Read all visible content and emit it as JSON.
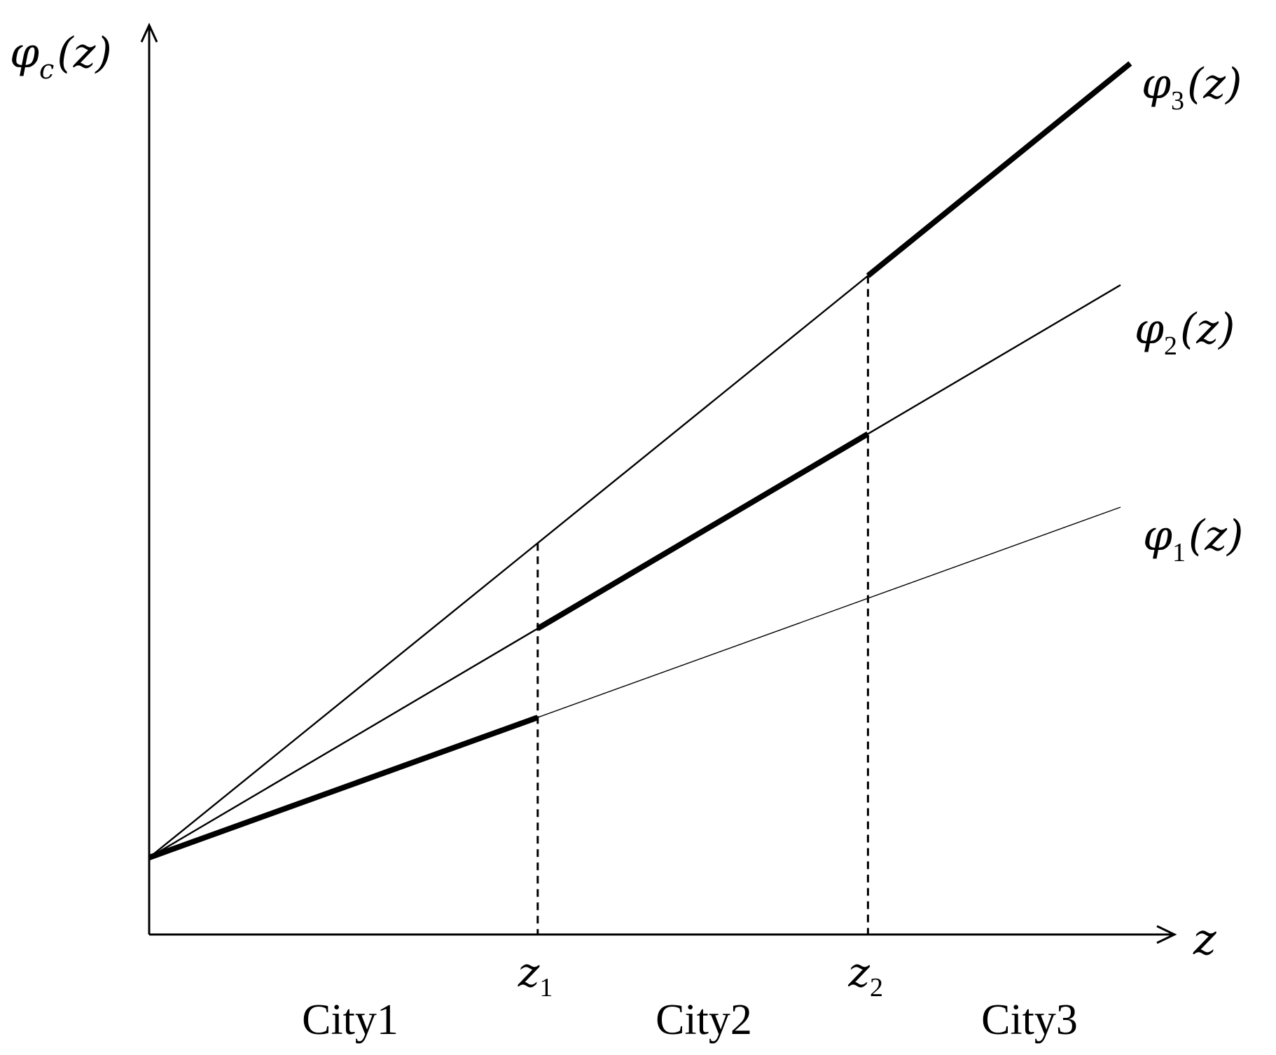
{
  "chart_data": {
    "type": "line",
    "title": "",
    "ylabel": {
      "main": "φ",
      "sub": "c",
      "arg": "(z)"
    },
    "xlabel": "z",
    "grid": false,
    "legend": "none",
    "x_breakpoints": [
      {
        "name": "z1",
        "main": "z",
        "sub": "1",
        "x": 0.4
      },
      {
        "name": "z2",
        "main": "z",
        "sub": "2",
        "x": 0.74
      }
    ],
    "regions": [
      {
        "label": "City1",
        "x_from": 0.0,
        "x_to": 0.4
      },
      {
        "label": "City2",
        "x_from": 0.4,
        "x_to": 0.74
      },
      {
        "label": "City3",
        "x_from": 0.74,
        "x_to": 1.0
      }
    ],
    "x_range": [
      0,
      1.0
    ],
    "y_range": [
      0,
      1.0
    ],
    "series": [
      {
        "key": "phi1",
        "name": {
          "main": "φ",
          "sub": "1",
          "arg": "(z)"
        },
        "intercept": 0.09,
        "slope": 0.41,
        "x_end": 1.0,
        "thick_from": 0.0,
        "thick_to": 0.4,
        "color": "#000000"
      },
      {
        "key": "phi2",
        "name": {
          "main": "φ",
          "sub": "2",
          "arg": "(z)"
        },
        "intercept": 0.09,
        "slope": 0.67,
        "x_end": 1.0,
        "thick_from": 0.4,
        "thick_to": 0.74,
        "color": "#000000"
      },
      {
        "key": "phi3",
        "name": {
          "main": "φ",
          "sub": "3",
          "arg": "(z)"
        },
        "intercept": 0.09,
        "slope": 0.92,
        "x_end": 1.01,
        "thick_from": 0.74,
        "thick_to": 1.01,
        "color": "#000000"
      }
    ]
  }
}
